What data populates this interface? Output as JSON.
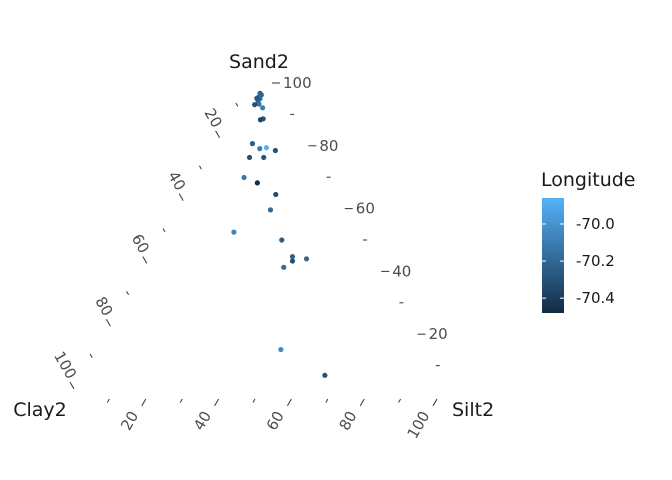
{
  "chart_data": {
    "type": "scatter",
    "subtype": "ternary",
    "axes": {
      "top": "Sand2",
      "left": "Clay2",
      "right": "Silt2"
    },
    "ticks": [
      20,
      40,
      60,
      80,
      100
    ],
    "tick_labels": [
      "20",
      "40",
      "60",
      "80",
      "100"
    ],
    "legend": {
      "title": "Longitude",
      "range": [
        -70.48,
        -69.86
      ],
      "ticks": [
        -70.0,
        -70.2,
        -70.4
      ],
      "tick_labels": [
        "-70.0",
        "-70.2",
        "-70.4"
      ],
      "color_low": "#132b43",
      "color_high": "#56b1f7",
      "placement": "right"
    },
    "points": [
      {
        "sand": 96.7,
        "silt": 1.4,
        "clay": 1.9,
        "lon": -70.25
      },
      {
        "sand": 96.2,
        "silt": 2.0,
        "clay": 1.8,
        "lon": -70.22
      },
      {
        "sand": 95.5,
        "silt": 1.6,
        "clay": 2.9,
        "lon": -70.18
      },
      {
        "sand": 95.0,
        "silt": 2.2,
        "clay": 2.8,
        "lon": -70.2
      },
      {
        "sand": 95.1,
        "silt": 1.3,
        "clay": 3.6,
        "lon": -70.28
      },
      {
        "sand": 93.8,
        "silt": 2.3,
        "clay": 3.9,
        "lon": -70.24
      },
      {
        "sand": 93.3,
        "silt": 2.8,
        "clay": 3.9,
        "lon": -70.15
      },
      {
        "sand": 93.1,
        "silt": 1.7,
        "clay": 5.2,
        "lon": -70.3
      },
      {
        "sand": 92.1,
        "silt": 4.4,
        "clay": 3.5,
        "lon": -70.1
      },
      {
        "sand": 88.6,
        "silt": 6.3,
        "clay": 5.1,
        "lon": -70.3
      },
      {
        "sand": 88.3,
        "silt": 5.7,
        "clay": 6.0,
        "lon": -70.35
      },
      {
        "sand": 80.7,
        "silt": 7.3,
        "clay": 12.0,
        "lon": -70.25
      },
      {
        "sand": 79.1,
        "silt": 10.1,
        "clay": 10.8,
        "lon": -70.1
      },
      {
        "sand": 79.4,
        "silt": 11.8,
        "clay": 8.8,
        "lon": -69.88
      },
      {
        "sand": 78.5,
        "silt": 14.7,
        "clay": 6.8,
        "lon": -70.3
      },
      {
        "sand": 76.3,
        "silt": 8.7,
        "clay": 15.0,
        "lon": -70.32
      },
      {
        "sand": 76.3,
        "silt": 12.6,
        "clay": 11.1,
        "lon": -70.3
      },
      {
        "sand": 69.9,
        "silt": 10.4,
        "clay": 19.7,
        "lon": -70.12
      },
      {
        "sand": 68.2,
        "silt": 14.9,
        "clay": 16.9,
        "lon": -70.48
      },
      {
        "sand": 64.5,
        "silt": 21.8,
        "clay": 13.7,
        "lon": -70.32
      },
      {
        "sand": 59.6,
        "silt": 22.8,
        "clay": 17.6,
        "lon": -70.2
      },
      {
        "sand": 52.5,
        "silt": 16.3,
        "clay": 31.2,
        "lon": -70.06
      },
      {
        "sand": 50.0,
        "silt": 30.7,
        "clay": 19.3,
        "lon": -70.25
      },
      {
        "sand": 44.7,
        "silt": 36.3,
        "clay": 19.0,
        "lon": -70.22
      },
      {
        "sand": 44.0,
        "silt": 40.5,
        "clay": 15.5,
        "lon": -70.2
      },
      {
        "sand": 43.3,
        "silt": 37.0,
        "clay": 19.7,
        "lon": -70.32
      },
      {
        "sand": 41.3,
        "silt": 35.6,
        "clay": 23.1,
        "lon": -70.18
      },
      {
        "sand": 15.1,
        "silt": 47.9,
        "clay": 37.0,
        "lon": -70.05
      },
      {
        "sand": 6.9,
        "silt": 64.1,
        "clay": 29.0,
        "lon": -70.3
      }
    ]
  }
}
